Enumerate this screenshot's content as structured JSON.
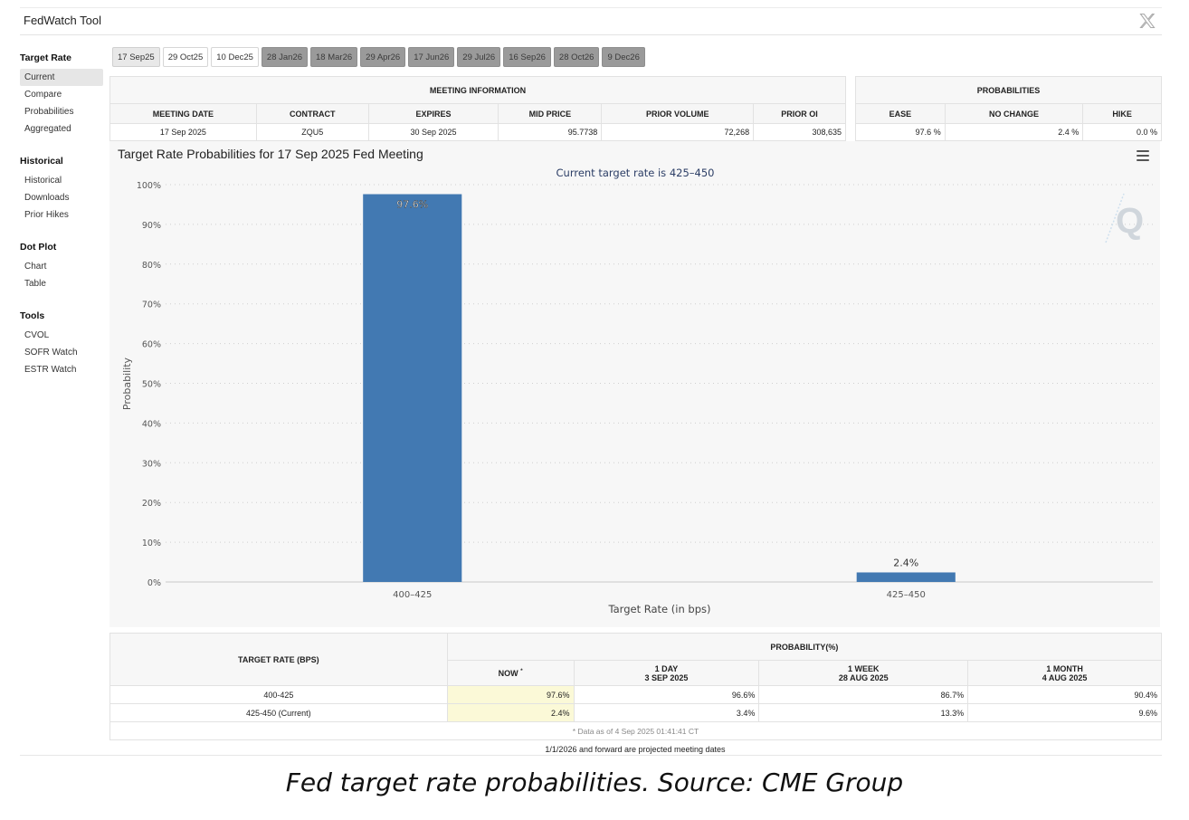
{
  "app": {
    "title": "FedWatch Tool"
  },
  "sidebar": {
    "groups": [
      {
        "title": "Target Rate",
        "items": [
          "Current",
          "Compare",
          "Probabilities",
          "Aggregated"
        ]
      },
      {
        "title": "Historical",
        "items": [
          "Historical",
          "Downloads",
          "Prior Hikes"
        ]
      },
      {
        "title": "Dot Plot",
        "items": [
          "Chart",
          "Table"
        ]
      },
      {
        "title": "Tools",
        "items": [
          "CVOL",
          "SOFR Watch",
          "ESTR Watch"
        ]
      }
    ]
  },
  "tabs": [
    {
      "label": "17 Sep25",
      "state": "selected"
    },
    {
      "label": "29 Oct25",
      "state": "normal"
    },
    {
      "label": "10 Dec25",
      "state": "normal"
    },
    {
      "label": "28 Jan26",
      "state": "projected"
    },
    {
      "label": "18 Mar26",
      "state": "projected"
    },
    {
      "label": "29 Apr26",
      "state": "projected"
    },
    {
      "label": "17 Jun26",
      "state": "projected"
    },
    {
      "label": "29 Jul26",
      "state": "projected"
    },
    {
      "label": "16 Sep26",
      "state": "projected"
    },
    {
      "label": "28 Oct26",
      "state": "projected"
    },
    {
      "label": "9 Dec26",
      "state": "projected"
    }
  ],
  "meeting_info": {
    "header": "MEETING INFORMATION",
    "columns": [
      "MEETING DATE",
      "CONTRACT",
      "EXPIRES",
      "MID PRICE",
      "PRIOR VOLUME",
      "PRIOR OI"
    ],
    "row": [
      "17 Sep 2025",
      "ZQU5",
      "30 Sep 2025",
      "95.7738",
      "72,268",
      "308,635"
    ]
  },
  "probabilities": {
    "header": "PROBABILITIES",
    "columns": [
      "EASE",
      "NO CHANGE",
      "HIKE"
    ],
    "row": [
      "97.6 %",
      "2.4 %",
      "0.0 %"
    ]
  },
  "chart": {
    "title": "Target Rate Probabilities for 17 Sep 2025 Fed Meeting",
    "menu_icon": "hamburger-menu-icon",
    "watermark_icon": "q-watermark-icon",
    "bar_color": "#4279b2"
  },
  "chart_data": {
    "type": "bar",
    "title": "Target Rate Probabilities for 17 Sep 2025 Fed Meeting",
    "subtitle": "Current target rate is 425–450",
    "xlabel": "Target Rate (in bps)",
    "ylabel": "Probability",
    "categories": [
      "400–425",
      "425–450"
    ],
    "values": [
      97.6,
      2.4
    ],
    "data_labels": [
      "97.6%",
      "2.4%"
    ],
    "ylim": [
      0,
      100
    ],
    "yticks": [
      "0%",
      "10%",
      "20%",
      "30%",
      "40%",
      "50%",
      "60%",
      "70%",
      "80%",
      "90%",
      "100%"
    ],
    "grid": true
  },
  "prob_table": {
    "col_target": "TARGET RATE (BPS)",
    "group_header": "PROBABILITY(%)",
    "now_label": "NOW",
    "now_mark": "*",
    "cols": [
      {
        "l1": "1 DAY",
        "l2": "3 SEP 2025"
      },
      {
        "l1": "1 WEEK",
        "l2": "28 AUG 2025"
      },
      {
        "l1": "1 MONTH",
        "l2": "4 AUG 2025"
      }
    ],
    "rows": [
      {
        "rate": "400-425",
        "now": "97.6%",
        "d1": "96.6%",
        "w1": "86.7%",
        "m1": "90.4%"
      },
      {
        "rate": "425-450 (Current)",
        "now": "2.4%",
        "d1": "3.4%",
        "w1": "13.3%",
        "m1": "9.6%"
      }
    ],
    "note": "* Data as of 4 Sep 2025 01:41:41 CT"
  },
  "footer": {
    "note": "1/1/2026 and forward are projected meeting dates",
    "caption": "Fed target rate probabilities. Source: CME Group"
  }
}
